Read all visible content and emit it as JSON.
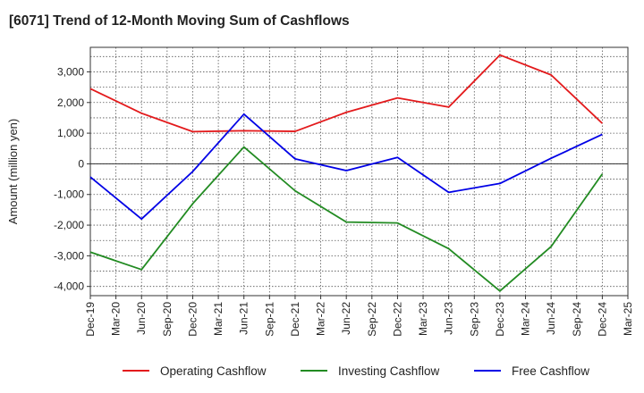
{
  "title": "[6071]  Trend of 12-Month Moving Sum of Cashflows",
  "chart_data": {
    "type": "line",
    "title": "[6071]  Trend of 12-Month Moving Sum of Cashflows",
    "ylabel": "Amount (million yen)",
    "xlabel": "",
    "ylim": [
      -4300,
      3800
    ],
    "yticks": [
      3000,
      2000,
      1000,
      0,
      -1000,
      -2000,
      -3000,
      -4000
    ],
    "ytick_labels": [
      "3,000",
      "2,000",
      "1,000",
      "0",
      "-1,000",
      "-2,000",
      "-3,000",
      "-4,000"
    ],
    "categories": [
      "Dec-19",
      "Mar-20",
      "Jun-20",
      "Sep-20",
      "Dec-20",
      "Mar-21",
      "Jun-21",
      "Sep-21",
      "Dec-21",
      "Mar-22",
      "Jun-22",
      "Sep-22",
      "Dec-22",
      "Mar-23",
      "Jun-23",
      "Sep-23",
      "Dec-23",
      "Mar-24",
      "Jun-24",
      "Sep-24",
      "Dec-24",
      "Mar-25"
    ],
    "grid": true,
    "legend_position": "bottom",
    "series": [
      {
        "name": "Operating Cashflow",
        "color": "#e31a1c",
        "x": [
          "Dec-19",
          "Jun-20",
          "Dec-20",
          "Jun-21",
          "Dec-21",
          "Jun-22",
          "Dec-22",
          "Jun-23",
          "Dec-23",
          "Jun-24",
          "Dec-24"
        ],
        "values": [
          2450,
          1650,
          1050,
          1080,
          1060,
          1680,
          2150,
          1850,
          3550,
          2900,
          1320
        ]
      },
      {
        "name": "Investing Cashflow",
        "color": "#228b22",
        "x": [
          "Dec-19",
          "Jun-20",
          "Dec-20",
          "Jun-21",
          "Dec-21",
          "Jun-22",
          "Dec-22",
          "Jun-23",
          "Dec-23",
          "Jun-24",
          "Dec-24"
        ],
        "values": [
          -2880,
          -3450,
          -1300,
          550,
          -880,
          -1900,
          -1930,
          -2770,
          -4150,
          -2700,
          -330
        ]
      },
      {
        "name": "Free Cashflow",
        "color": "#0000e6",
        "x": [
          "Dec-19",
          "Jun-20",
          "Dec-20",
          "Jun-21",
          "Dec-21",
          "Jun-22",
          "Dec-22",
          "Jun-23",
          "Dec-23",
          "Jun-24",
          "Dec-24"
        ],
        "values": [
          -430,
          -1800,
          -250,
          1620,
          160,
          -220,
          210,
          -930,
          -640,
          180,
          960
        ]
      }
    ]
  }
}
